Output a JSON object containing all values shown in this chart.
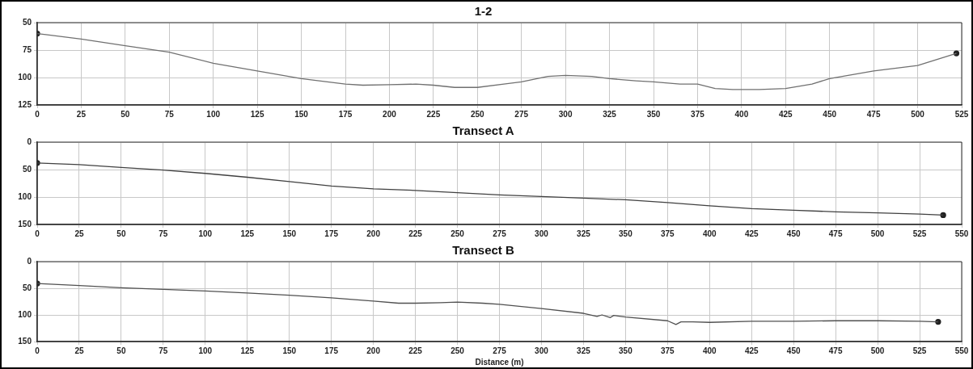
{
  "chart_data": [
    {
      "type": "line",
      "title": "1-2",
      "xlim": [
        0,
        525
      ],
      "xticks": [
        0,
        25,
        50,
        75,
        100,
        125,
        150,
        175,
        200,
        225,
        250,
        275,
        300,
        325,
        350,
        375,
        400,
        425,
        450,
        475,
        500,
        525
      ],
      "ylim": [
        125,
        50
      ],
      "yticks": [
        50,
        75,
        100,
        125
      ],
      "grid": true,
      "line_style": "solid",
      "series": [
        {
          "color": "#707070",
          "marker": "none",
          "x": [
            0,
            5,
            25,
            50,
            75,
            100,
            125,
            150,
            175,
            185,
            200,
            215,
            225,
            237,
            250,
            265,
            275,
            290,
            300,
            315,
            325,
            340,
            350,
            365,
            375,
            385,
            395,
            410,
            425,
            440,
            450,
            475,
            500,
            522
          ],
          "values": [
            60,
            61,
            65,
            71,
            77,
            87,
            94,
            101,
            106,
            107,
            106.5,
            106,
            107,
            109,
            109,
            106,
            104,
            99,
            98,
            99,
            101,
            103,
            104,
            106,
            106,
            110,
            111,
            111,
            110,
            106,
            101,
            94,
            89,
            78
          ]
        },
        {
          "type": "scatter",
          "color": "#222222",
          "marker": "circle",
          "x": [
            0,
            522
          ],
          "values": [
            60,
            78
          ]
        }
      ]
    },
    {
      "type": "line",
      "title": "Transect A",
      "xlim": [
        0,
        550
      ],
      "xticks": [
        0,
        25,
        50,
        75,
        100,
        125,
        150,
        175,
        200,
        225,
        250,
        275,
        300,
        325,
        350,
        375,
        400,
        425,
        450,
        475,
        500,
        525,
        550
      ],
      "ylim": [
        150,
        0
      ],
      "yticks": [
        0,
        50,
        100,
        150
      ],
      "grid": true,
      "line_style": "solid",
      "series": [
        {
          "color": "#404040",
          "marker": "none",
          "x": [
            0,
            25,
            50,
            75,
            100,
            125,
            150,
            175,
            200,
            225,
            250,
            275,
            300,
            325,
            350,
            375,
            400,
            425,
            450,
            475,
            500,
            525,
            539
          ],
          "values": [
            38,
            41,
            46,
            51,
            57,
            64,
            72,
            80,
            85,
            88,
            92,
            96,
            99,
            102,
            105,
            110,
            116,
            121,
            124,
            127,
            129,
            131,
            133
          ]
        },
        {
          "type": "scatter",
          "color": "#222222",
          "marker": "circle",
          "x": [
            0,
            539
          ],
          "values": [
            38,
            133
          ]
        }
      ]
    },
    {
      "type": "line",
      "title": "Transect B",
      "xlabel": "Distance (m)",
      "xlim": [
        0,
        550
      ],
      "xticks": [
        0,
        25,
        50,
        75,
        100,
        125,
        150,
        175,
        200,
        225,
        250,
        275,
        300,
        325,
        350,
        375,
        400,
        425,
        450,
        475,
        500,
        525,
        550
      ],
      "ylim": [
        150,
        0
      ],
      "yticks": [
        0,
        50,
        100,
        150
      ],
      "grid": true,
      "line_style": "solid",
      "series": [
        {
          "color": "#505050",
          "marker": "none",
          "x": [
            0,
            25,
            50,
            75,
            100,
            125,
            150,
            175,
            200,
            215,
            225,
            240,
            250,
            265,
            275,
            300,
            325,
            333,
            336,
            341,
            343,
            350,
            375,
            380,
            383,
            390,
            400,
            425,
            450,
            475,
            500,
            525,
            536
          ],
          "values": [
            41,
            45,
            49,
            52,
            55,
            59,
            63,
            68,
            74,
            78,
            78,
            77,
            76,
            78,
            80,
            88,
            97,
            103,
            100,
            105,
            101,
            104,
            111,
            118,
            113,
            113,
            114,
            112,
            112,
            111,
            111,
            112,
            113
          ]
        },
        {
          "type": "scatter",
          "color": "#222222",
          "marker": "circle",
          "x": [
            0,
            536
          ],
          "values": [
            41,
            113
          ]
        }
      ]
    }
  ]
}
